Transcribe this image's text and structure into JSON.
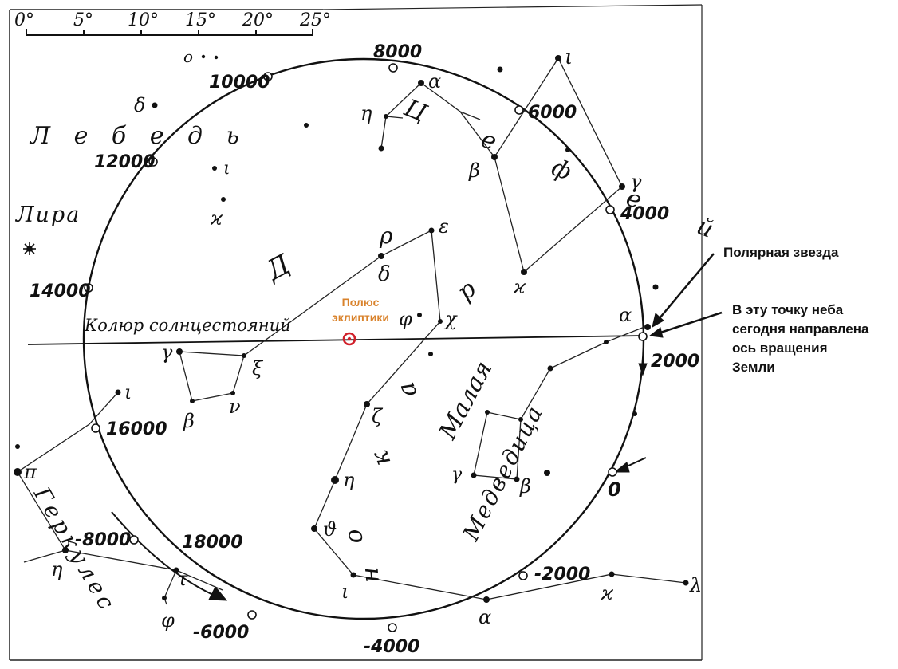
{
  "scale": {
    "ticks": [
      "0°",
      "5°",
      "10°",
      "15°",
      "20°",
      "25°"
    ]
  },
  "year_marks": [
    {
      "label": "8000"
    },
    {
      "label": "10000"
    },
    {
      "label": "12000"
    },
    {
      "label": "14000"
    },
    {
      "label": "16000"
    },
    {
      "label": "18000"
    },
    {
      "label": "-8000"
    },
    {
      "label": "-6000"
    },
    {
      "label": "-4000"
    },
    {
      "label": "-2000"
    },
    {
      "label": "0"
    },
    {
      "label": "2000"
    },
    {
      "label": "4000"
    },
    {
      "label": "6000"
    }
  ],
  "constellations": {
    "cygnus": "Л е б е д ь",
    "lyra": "Лира",
    "cepheus": "Ц е ф е й",
    "draco": "Д р а к о н",
    "ursa_minor_1": "Малая",
    "ursa_minor_2": "Медведица",
    "hercules": "Геркулес"
  },
  "solstitial_colure": "Колюр солнцестояний",
  "ecliptic_pole": {
    "line1": "Полюс",
    "line2": "эклиптики",
    "color": "#d9822b",
    "marker_color": "#d0202a"
  },
  "annotations": {
    "polaris": "Полярная звезда",
    "axis_1": "В эту точку неба",
    "axis_2": "сегодня направлена",
    "axis_3": "ось вращения",
    "axis_4": "Земли"
  },
  "star_labels": [
    "о",
    "δ",
    "ι",
    "ϰ",
    "α",
    "η",
    "β",
    "ι",
    "γ",
    "ϰ",
    "ρ",
    "ε",
    "δ",
    "φ",
    "χ",
    "γ",
    "ξ",
    "β",
    "ν",
    "ζ",
    "η",
    "ϑ",
    "ι",
    "α",
    "ϰ",
    "λ",
    "γ",
    "β",
    "α",
    "ι",
    "π",
    "η",
    "τ",
    "φ"
  ]
}
